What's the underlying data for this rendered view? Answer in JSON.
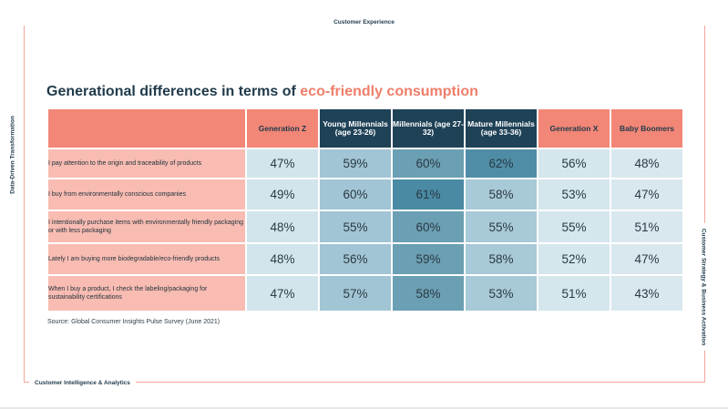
{
  "header_label": "Customer Experience",
  "footer_label": "Customer Intelligence & Analytics",
  "left_label": "Data-Driven Transformation",
  "right_label": "Customer Strategy & Business Activation",
  "title": {
    "main": "Generational differences in terms of ",
    "accent": "eco-friendly consumption"
  },
  "colors": {
    "accent": "#ef7e6a",
    "header_coral": "#f28677",
    "header_dark": "#1f4257",
    "row_label_bg": "#f8bcb2"
  },
  "columns": [
    "Generation Z",
    "Young Millennials (age 23-26)",
    "Millennials (age 27-32)",
    "Mature Millennials (age 33-36)",
    "Generation X",
    "Baby Boomers"
  ],
  "rows": [
    {
      "label": "I pay attention to the origin and traceability of products",
      "values": [
        "47%",
        "59%",
        "60%",
        "62%",
        "56%",
        "48%"
      ]
    },
    {
      "label": "I buy from environmentally conscious companies",
      "values": [
        "49%",
        "60%",
        "61%",
        "58%",
        "53%",
        "47%"
      ]
    },
    {
      "label": "I intentionally purchase items with environmentally friendly packaging or with less packaging",
      "values": [
        "48%",
        "55%",
        "60%",
        "55%",
        "55%",
        "51%"
      ]
    },
    {
      "label": "Lately I am buying more biodegradable/eco-friendly products",
      "values": [
        "48%",
        "56%",
        "59%",
        "58%",
        "52%",
        "47%"
      ]
    },
    {
      "label": "When I buy a product, I check the labeling/packaging for sustainability certifications",
      "values": [
        "47%",
        "57%",
        "58%",
        "53%",
        "51%",
        "43%"
      ]
    }
  ],
  "source": "Source: Global Consumer Insights Pulse Survey (June 2021)",
  "chart_data": {
    "type": "table",
    "title": "Generational differences in terms of eco-friendly consumption",
    "categories": [
      "Generation Z",
      "Young Millennials (age 23-26)",
      "Millennials (age 27-32)",
      "Mature Millennials (age 33-36)",
      "Generation X",
      "Baby Boomers"
    ],
    "series": [
      {
        "name": "I pay attention to the origin and traceability of products",
        "values": [
          47,
          59,
          60,
          62,
          56,
          48
        ]
      },
      {
        "name": "I buy from environmentally conscious companies",
        "values": [
          49,
          60,
          61,
          58,
          53,
          47
        ]
      },
      {
        "name": "I intentionally purchase items with environmentally friendly packaging or with less packaging",
        "values": [
          48,
          55,
          60,
          55,
          55,
          51
        ]
      },
      {
        "name": "Lately I am buying more biodegradable/eco-friendly products",
        "values": [
          48,
          56,
          59,
          58,
          52,
          47
        ]
      },
      {
        "name": "When I buy a product, I check the labeling/packaging for sustainability certifications",
        "values": [
          47,
          57,
          58,
          53,
          51,
          43
        ]
      }
    ],
    "unit": "%"
  }
}
